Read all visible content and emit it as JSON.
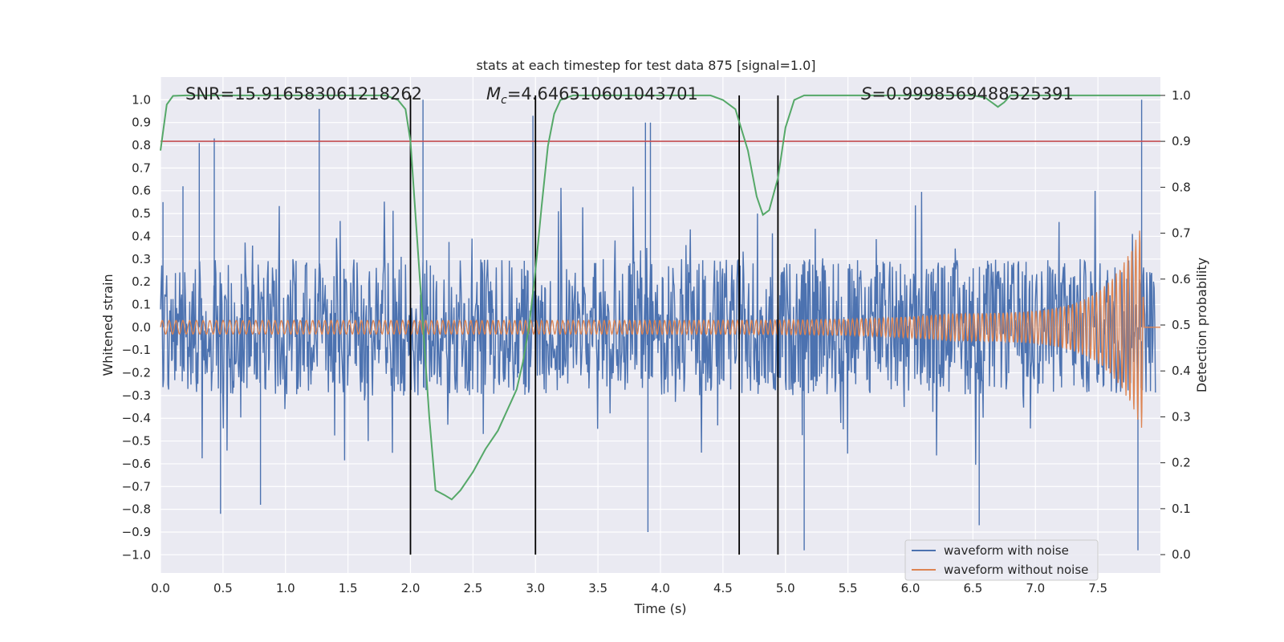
{
  "chart_data": {
    "type": "line",
    "title": "stats at each timestep for test data 875 [signal=1.0]",
    "xlabel": "Time (s)",
    "ylabel": "Whitened strain",
    "y2label": "Detection probability",
    "xlim": [
      0.0,
      8.0
    ],
    "ylim": [
      -1.08,
      1.1
    ],
    "y2lim": [
      -0.04,
      1.04
    ],
    "xticks": [
      "0.0",
      "0.5",
      "1.0",
      "1.5",
      "2.0",
      "2.5",
      "3.0",
      "3.5",
      "4.0",
      "4.5",
      "5.0",
      "5.5",
      "6.0",
      "6.5",
      "7.0",
      "7.5"
    ],
    "yticks": [
      "1.0",
      "0.9",
      "0.8",
      "0.7",
      "0.6",
      "0.5",
      "0.4",
      "0.3",
      "0.2",
      "0.1",
      "0.0",
      "−0.1",
      "−0.2",
      "−0.3",
      "−0.4",
      "−0.5",
      "−0.6",
      "−0.7",
      "−0.8",
      "−0.9",
      "−1.0"
    ],
    "y2ticks": [
      "1.0",
      "0.9",
      "0.8",
      "0.7",
      "0.6",
      "0.5",
      "0.4",
      "0.3",
      "0.2",
      "0.1",
      "0.0"
    ],
    "annotations": {
      "snr": "SNR=15.916583061218262",
      "mc_symbol": "M",
      "mc_sub": "c",
      "mc_value": "=4.646510601043701",
      "s_symbol": "S",
      "s_value": "=0.9998569488525391"
    },
    "threshold": {
      "y2": 0.9,
      "color": "#c44e52"
    },
    "vertical_lines": [
      2.0,
      3.0,
      4.63,
      4.94
    ],
    "vertical_line_span_y2": [
      0.0,
      1.0
    ],
    "series": [
      {
        "name": "waveform with noise",
        "color": "#4c72b0",
        "axis": "left",
        "description": "noisy whitened strain, typical envelope ±0.3, spikes up to ±1.0",
        "envelope": 0.3,
        "spikes": [
          {
            "t": 0.02,
            "v": 0.55
          },
          {
            "t": 0.18,
            "v": 0.62
          },
          {
            "t": 0.31,
            "v": 0.81
          },
          {
            "t": 0.43,
            "v": 0.83
          },
          {
            "t": 1.27,
            "v": 0.96
          },
          {
            "t": 2.1,
            "v": 1.0
          },
          {
            "t": 2.98,
            "v": 0.93
          },
          {
            "t": 3.88,
            "v": 0.9
          },
          {
            "t": 3.92,
            "v": 0.9
          },
          {
            "t": 7.85,
            "v": 1.0
          },
          {
            "t": 0.48,
            "v": -0.82
          },
          {
            "t": 0.8,
            "v": -0.78
          },
          {
            "t": 3.9,
            "v": -0.9
          },
          {
            "t": 5.15,
            "v": -0.98
          },
          {
            "t": 6.55,
            "v": -0.87
          },
          {
            "t": 7.82,
            "v": -0.98
          }
        ]
      },
      {
        "name": "waveform without noise",
        "color": "#dd8452",
        "axis": "left",
        "description": "chirp signal, amplitude 0.03 rising to ~0.45 near t=7.85 s then ending",
        "amplitude_start": 0.03,
        "amplitude_peak": 0.45,
        "peak_time": 7.85,
        "end_time": 7.87
      },
      {
        "name": "detection probability",
        "color": "#55a868",
        "axis": "right",
        "x": [
          0.0,
          0.05,
          0.1,
          0.2,
          0.5,
          1.0,
          1.5,
          1.8,
          1.9,
          1.96,
          2.0,
          2.05,
          2.1,
          2.15,
          2.2,
          2.27,
          2.33,
          2.4,
          2.5,
          2.6,
          2.7,
          2.8,
          2.85,
          2.9,
          2.95,
          3.0,
          3.05,
          3.1,
          3.15,
          3.2,
          3.3,
          3.5,
          4.0,
          4.4,
          4.5,
          4.6,
          4.7,
          4.77,
          4.82,
          4.87,
          4.94,
          5.0,
          5.07,
          5.15,
          5.5,
          6.0,
          6.5,
          6.6,
          6.65,
          6.7,
          6.75,
          6.8,
          7.0,
          7.5,
          8.0
        ],
        "y": [
          0.88,
          0.98,
          0.999,
          1.0,
          1.0,
          1.0,
          1.0,
          1.0,
          0.99,
          0.97,
          0.9,
          0.7,
          0.5,
          0.3,
          0.14,
          0.13,
          0.12,
          0.14,
          0.18,
          0.23,
          0.27,
          0.33,
          0.36,
          0.42,
          0.5,
          0.62,
          0.76,
          0.89,
          0.96,
          0.99,
          1.0,
          1.0,
          1.0,
          1.0,
          0.99,
          0.97,
          0.88,
          0.78,
          0.74,
          0.75,
          0.82,
          0.93,
          0.99,
          1.0,
          1.0,
          1.0,
          1.0,
          0.995,
          0.985,
          0.975,
          0.985,
          1.0,
          1.0,
          1.0,
          1.0
        ]
      }
    ],
    "legend": {
      "position": "lower-right",
      "entries": [
        {
          "label": "waveform with noise",
          "color": "#4c72b0"
        },
        {
          "label": "waveform without noise",
          "color": "#dd8452"
        }
      ]
    }
  }
}
